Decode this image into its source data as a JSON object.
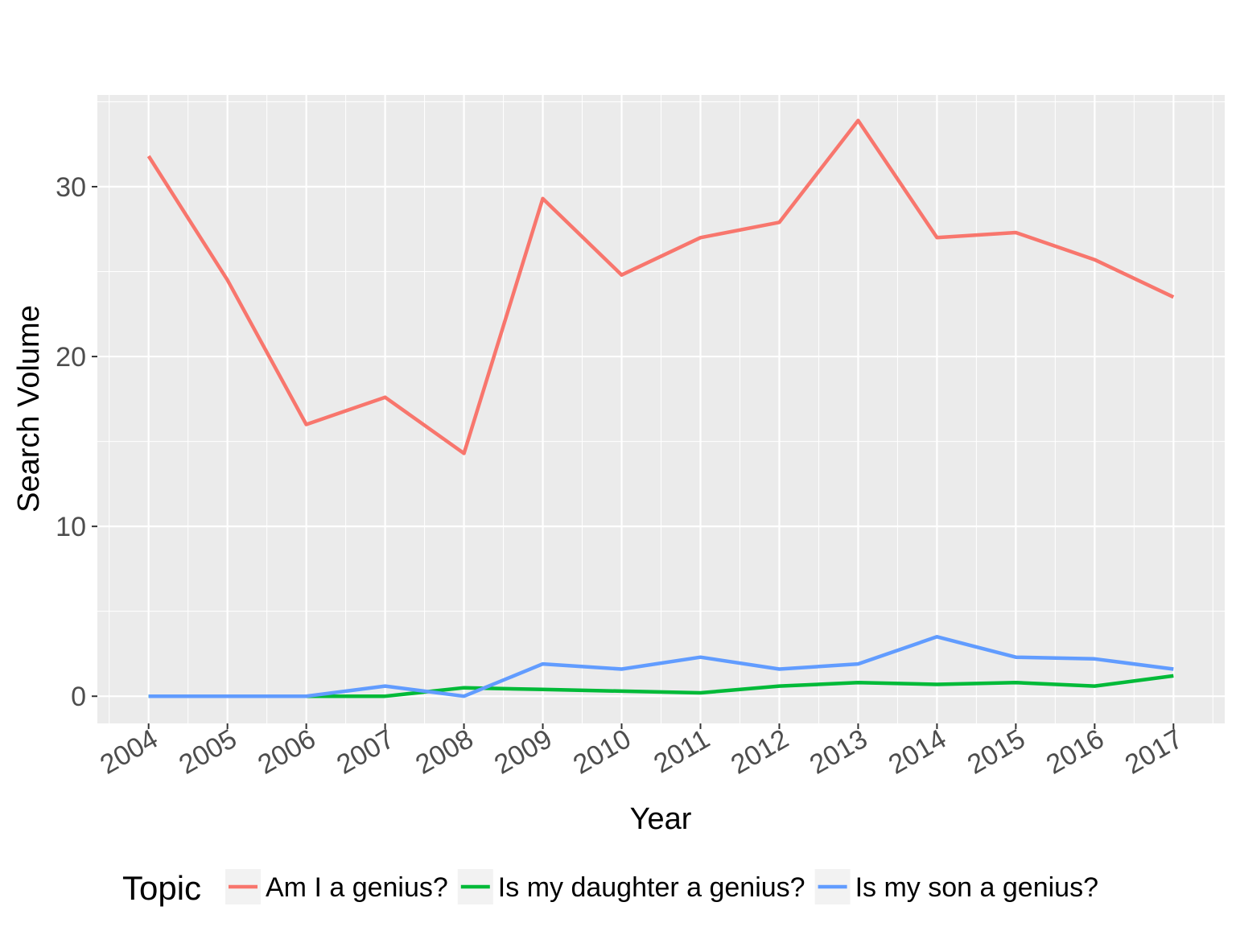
{
  "chart_data": {
    "type": "line",
    "title": "",
    "xlabel": "Year",
    "ylabel": "Search Volume",
    "x": [
      2004,
      2005,
      2006,
      2007,
      2008,
      2009,
      2010,
      2011,
      2012,
      2013,
      2014,
      2015,
      2016,
      2017
    ],
    "x_tick_labels": [
      "2004",
      "2005",
      "2006",
      "2007",
      "2008",
      "2009",
      "2010",
      "2011",
      "2012",
      "2013",
      "2014",
      "2015",
      "2016",
      "2017"
    ],
    "y_ticks": [
      0,
      10,
      20,
      30
    ],
    "y_tick_labels": [
      "0",
      "10",
      "20",
      "30"
    ],
    "xlim": [
      2003.35,
      2017.65
    ],
    "ylim": [
      -1.6,
      35.4
    ],
    "grid": true,
    "legend_position": "bottom",
    "legend_title": "Topic",
    "series": [
      {
        "name": "Am I a genius?",
        "color": "#F8766D",
        "values": [
          31.8,
          24.5,
          16.0,
          17.6,
          14.3,
          29.3,
          24.8,
          27.0,
          27.9,
          33.9,
          27.0,
          27.3,
          25.7,
          23.5
        ]
      },
      {
        "name": "Is my daughter a genius?",
        "color": "#00BA38",
        "values": [
          0.0,
          0.0,
          0.0,
          0.0,
          0.5,
          0.4,
          0.3,
          0.2,
          0.6,
          0.8,
          0.7,
          0.8,
          0.6,
          1.2
        ]
      },
      {
        "name": "Is my son a genius?",
        "color": "#619CFF",
        "values": [
          0.0,
          0.0,
          0.0,
          0.6,
          0.0,
          1.9,
          1.6,
          2.3,
          1.6,
          1.9,
          3.5,
          2.3,
          2.2,
          1.6
        ]
      }
    ]
  }
}
